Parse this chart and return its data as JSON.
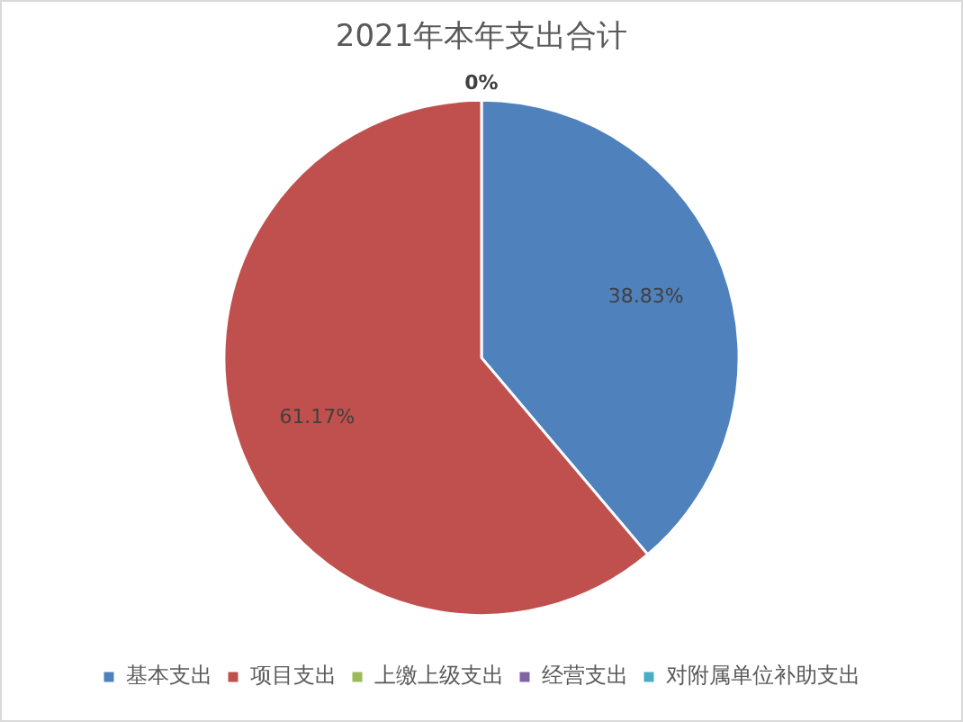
{
  "chart_data": {
    "type": "pie",
    "title": "2021年本年支出合计",
    "categories": [
      "基本支出",
      "项目支出",
      "上缴上级支出",
      "经营支出",
      "对附属单位补助支出"
    ],
    "values": [
      38.83,
      61.17,
      0,
      0,
      0
    ],
    "colors": [
      "#4f81bd",
      "#c0504d",
      "#9bbb59",
      "#8064a2",
      "#4bacc6"
    ],
    "value_labels": [
      "38.83%",
      "61.17%",
      "0%",
      null,
      null
    ],
    "legend": "bottom"
  }
}
